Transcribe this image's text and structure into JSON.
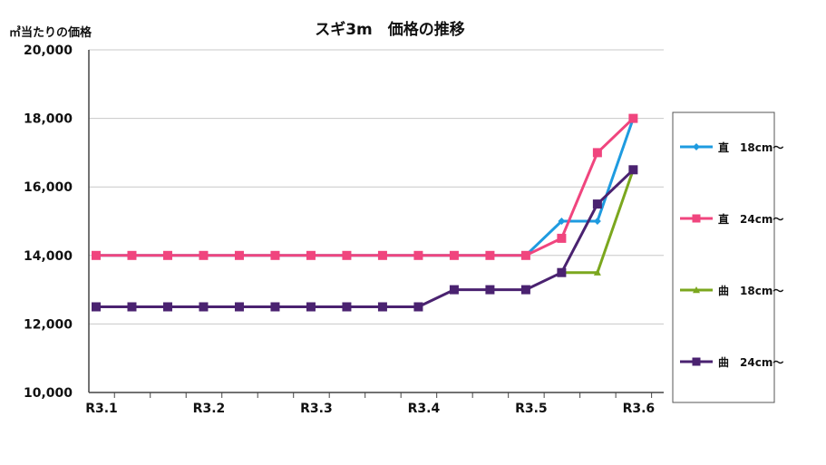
{
  "chart_data": {
    "type": "line",
    "title": "スギ3m　価格の推移",
    "ylabel": "㎥当たりの価格",
    "xlabel": "",
    "ylim": [
      10000,
      20000
    ],
    "yticks": [
      10000,
      12000,
      14000,
      16000,
      18000,
      20000
    ],
    "ytick_labels": [
      "10,000",
      "12,000",
      "14,000",
      "16,000",
      "18,000",
      "20,000"
    ],
    "xtick_labels": [
      "R3.1",
      "R3.2",
      "R3.3",
      "R3.4",
      "R3.5",
      "R3.6"
    ],
    "grid": true,
    "legend_position": "right",
    "series": [
      {
        "name": "直　18cm～",
        "color": "#1e9be0",
        "marker": "diamond",
        "x": [
          0,
          1,
          2,
          3,
          4,
          5,
          6,
          7,
          8,
          9,
          10,
          11,
          12,
          13,
          14,
          15
        ],
        "values": [
          14000,
          14000,
          14000,
          14000,
          14000,
          14000,
          14000,
          14000,
          14000,
          14000,
          14000,
          14000,
          14000,
          15000,
          15000,
          18000
        ]
      },
      {
        "name": "直　24cm～",
        "color": "#f0457e",
        "marker": "square",
        "x": [
          0,
          1,
          2,
          3,
          4,
          5,
          6,
          7,
          8,
          9,
          10,
          11,
          12,
          13,
          14,
          15
        ],
        "values": [
          14000,
          14000,
          14000,
          14000,
          14000,
          14000,
          14000,
          14000,
          14000,
          14000,
          14000,
          14000,
          14000,
          14500,
          17000,
          18000
        ]
      },
      {
        "name": "曲　18cm～",
        "color": "#7ba71e",
        "marker": "triangle",
        "x": [
          13,
          14,
          15
        ],
        "values": [
          13500,
          13500,
          16500
        ]
      },
      {
        "name": "曲　24cm～",
        "color": "#4a2270",
        "marker": "square",
        "x": [
          0,
          1,
          2,
          3,
          4,
          5,
          6,
          7,
          8,
          9,
          10,
          11,
          12,
          13,
          14,
          15
        ],
        "values": [
          12500,
          12500,
          12500,
          12500,
          12500,
          12500,
          12500,
          12500,
          12500,
          12500,
          13000,
          13000,
          13000,
          13500,
          15500,
          16500
        ]
      }
    ]
  }
}
